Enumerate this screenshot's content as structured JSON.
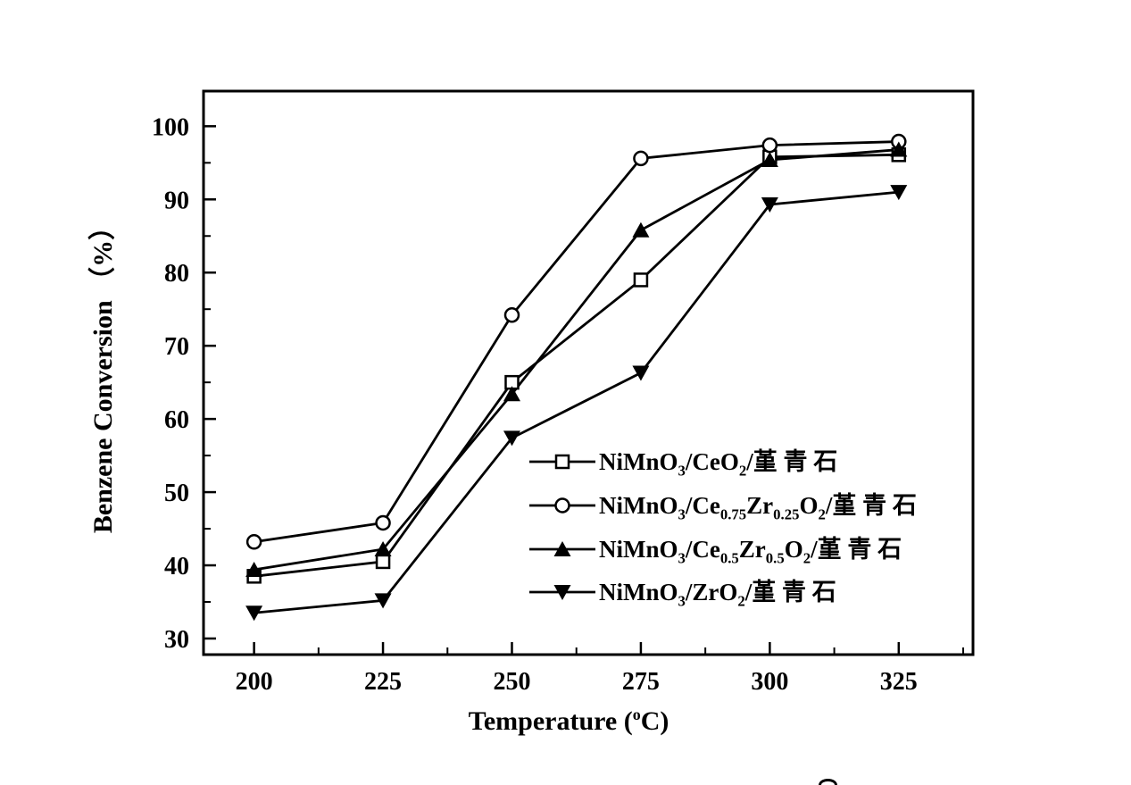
{
  "figure": {
    "background_color": "#ffffff",
    "ink_color": "#000000"
  },
  "chart_data": {
    "type": "line",
    "title": "",
    "xlabel_plain": "Temperature (oC)",
    "xlabel_segments": [
      {
        "t": "Temperature ("
      },
      {
        "sup": "o"
      },
      {
        "t": "C)"
      }
    ],
    "ylabel": "Benzene Conversion （%）",
    "x": [
      200,
      225,
      250,
      275,
      300,
      325
    ],
    "xlim": [
      190.2,
      339.4
    ],
    "ylim": [
      27.8,
      104.8
    ],
    "x_major_ticks": [
      200,
      225,
      250,
      275,
      300,
      325
    ],
    "x_minor_step": 12.5,
    "y_major_ticks": [
      30,
      40,
      50,
      60,
      70,
      80,
      90,
      100
    ],
    "y_minor_step": 5,
    "grid": false,
    "legend_position": "inside-middle-right",
    "series": [
      {
        "name": "NiMnO3/CeO2/堇 青 石",
        "marker": "square-open",
        "label_segments": [
          {
            "t": "NiMnO"
          },
          {
            "sub": "3"
          },
          {
            "t": "/CeO"
          },
          {
            "sub": "2"
          },
          {
            "t": "/堇 青 石"
          }
        ],
        "values": [
          38.5,
          40.5,
          65.0,
          79.0,
          95.8,
          96.1
        ]
      },
      {
        "name": "NiMnO3/Ce0.75Zr0.25O2/堇 青 石",
        "marker": "circle-open",
        "label_segments": [
          {
            "t": "NiMnO"
          },
          {
            "sub": "3"
          },
          {
            "t": "/Ce"
          },
          {
            "sub": "0.75"
          },
          {
            "t": "Zr"
          },
          {
            "sub": "0.25"
          },
          {
            "t": "O"
          },
          {
            "sub": "2"
          },
          {
            "t": "/堇 青 石"
          }
        ],
        "values": [
          43.2,
          45.8,
          74.2,
          95.6,
          97.4,
          97.9
        ]
      },
      {
        "name": "NiMnO3/Ce0.5Zr0.5O2/堇 青 石",
        "marker": "triangle-up-filled",
        "label_segments": [
          {
            "t": "NiMnO"
          },
          {
            "sub": "3"
          },
          {
            "t": "/Ce"
          },
          {
            "sub": "0.5"
          },
          {
            "t": "Zr"
          },
          {
            "sub": "0.5"
          },
          {
            "t": "O"
          },
          {
            "sub": "2"
          },
          {
            "t": "/堇 青 石"
          }
        ],
        "values": [
          39.4,
          42.2,
          63.4,
          85.8,
          95.4,
          96.8
        ]
      },
      {
        "name": "NiMnO3/ZrO2/堇 青 石",
        "marker": "triangle-down-filled",
        "label_segments": [
          {
            "t": "NiMnO"
          },
          {
            "sub": "3"
          },
          {
            "t": "/ZrO"
          },
          {
            "sub": "2"
          },
          {
            "t": "/堇 青 石"
          }
        ],
        "values": [
          33.5,
          35.2,
          57.4,
          66.3,
          89.3,
          91.0
        ]
      }
    ]
  }
}
